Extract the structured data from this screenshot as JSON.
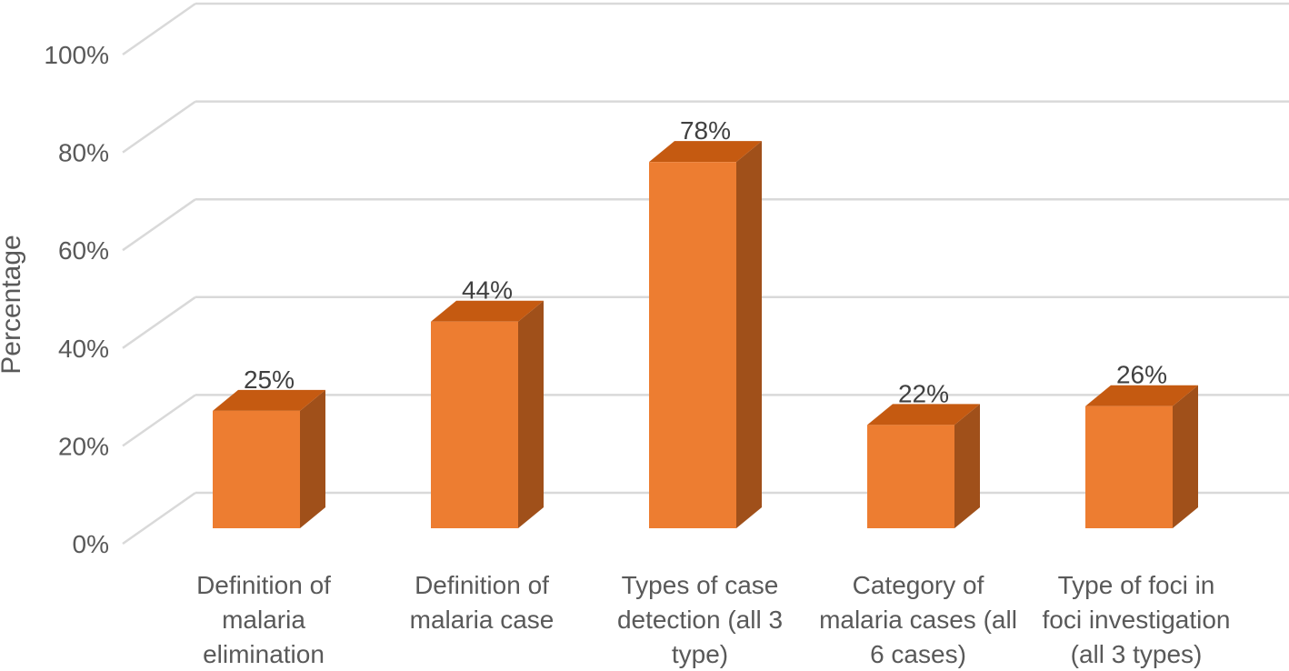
{
  "chart_data": {
    "type": "bar",
    "style": "3d-column",
    "title": "",
    "xlabel": "",
    "ylabel": "Percentage",
    "ylim": [
      0,
      100
    ],
    "yticks": [
      "0%",
      "20%",
      "40%",
      "60%",
      "80%",
      "100%"
    ],
    "grid": true,
    "categories": [
      [
        "Definition of",
        "malaria",
        "elimination"
      ],
      [
        "Definition of",
        "malaria case"
      ],
      [
        "Types of case",
        "detection (all 3",
        "type)"
      ],
      [
        "Category of",
        "malaria cases (all",
        "6 cases)"
      ],
      [
        "Type of foci in",
        "foci investigation",
        "(all 3 types)"
      ]
    ],
    "values": [
      25,
      44,
      78,
      22,
      26
    ],
    "data_labels": [
      "25%",
      "44%",
      "78%",
      "22%",
      "26%"
    ],
    "colors": {
      "front": "#ED7D31",
      "top": "#C55A11",
      "side": "#A0501A",
      "grid": "#D9D9D9",
      "text": "#595959"
    }
  }
}
